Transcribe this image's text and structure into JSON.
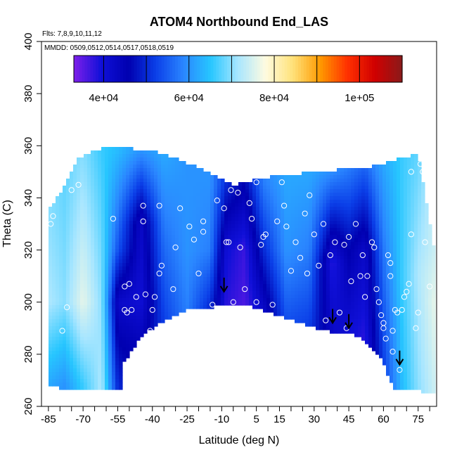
{
  "chart_data": {
    "type": "heatmap",
    "title": "ATOM4 Northbound End_LAS",
    "annotations": {
      "flights": "Flts: 7,8,9,10,11,12",
      "dates": "MMDD: 0509,0512,0514,0517,0518,0519"
    },
    "xlabel": "Latitude (deg N)",
    "ylabel": "Theta (C)",
    "xlim": [
      -88,
      83
    ],
    "ylim": [
      260,
      400
    ],
    "xticks": [
      -85,
      -70,
      -55,
      -40,
      -25,
      -10,
      5,
      15,
      30,
      45,
      60,
      75
    ],
    "xtick_labels": [
      "-85",
      "-70",
      "-55",
      "-40",
      "-25",
      "-10",
      "5",
      "15",
      "30",
      "45",
      "60",
      "75"
    ],
    "yticks": [
      260,
      280,
      300,
      320,
      340,
      360,
      380,
      400
    ],
    "ytick_labels": [
      "260",
      "280",
      "300",
      "320",
      "340",
      "360",
      "380",
      "400"
    ],
    "colorbar": {
      "range": [
        33000,
        110000
      ],
      "ticks": [
        40000,
        60000,
        80000,
        100000
      ],
      "tick_labels": [
        "4e+04",
        "6e+04",
        "8e+04",
        "1e+05"
      ],
      "colors": [
        "#7e1fea",
        "#1010d8",
        "#0000b0",
        "#0b3fe8",
        "#2a86ff",
        "#27c6ff",
        "#a8e6ff",
        "#fffbe0",
        "#ffe27a",
        "#ff9a00",
        "#ff3000",
        "#d00000",
        "#8a1a1a"
      ]
    },
    "region": {
      "top_boundary": [
        [
          -85,
          335
        ],
        [
          -78,
          345
        ],
        [
          -72,
          355
        ],
        [
          -60,
          360
        ],
        [
          -40,
          358
        ],
        [
          -20,
          352
        ],
        [
          -5,
          345
        ],
        [
          10,
          348
        ],
        [
          30,
          350
        ],
        [
          55,
          352
        ],
        [
          75,
          357
        ],
        [
          82,
          320
        ]
      ],
      "bottom_boundary": [
        [
          82,
          265
        ],
        [
          75,
          266
        ],
        [
          65,
          266
        ],
        [
          58,
          280
        ],
        [
          50,
          287
        ],
        [
          35,
          289
        ],
        [
          20,
          293
        ],
        [
          5,
          298
        ],
        [
          -5,
          299
        ],
        [
          -15,
          298
        ],
        [
          -25,
          297
        ],
        [
          -35,
          293
        ],
        [
          -45,
          287
        ],
        [
          -50,
          280
        ],
        [
          -53,
          276
        ],
        [
          -53,
          266
        ],
        [
          -75,
          266
        ],
        [
          -85,
          268
        ]
      ]
    },
    "field_columns": [
      {
        "lat": -85,
        "values": [
          [
            268,
            62000
          ],
          [
            300,
            72000
          ],
          [
            335,
            70000
          ]
        ]
      },
      {
        "lat": -78,
        "values": [
          [
            268,
            60000
          ],
          [
            300,
            70000
          ],
          [
            345,
            68000
          ]
        ]
      },
      {
        "lat": -70,
        "values": [
          [
            268,
            66000
          ],
          [
            300,
            76000
          ],
          [
            355,
            70000
          ]
        ]
      },
      {
        "lat": -62,
        "values": [
          [
            268,
            72000
          ],
          [
            300,
            70000
          ],
          [
            358,
            66000
          ]
        ]
      },
      {
        "lat": -55,
        "values": [
          [
            268,
            50000
          ],
          [
            300,
            42000
          ],
          [
            320,
            54000
          ],
          [
            358,
            64000
          ]
        ]
      },
      {
        "lat": -45,
        "values": [
          [
            285,
            44000
          ],
          [
            300,
            40000
          ],
          [
            330,
            42000
          ],
          [
            358,
            60000
          ]
        ]
      },
      {
        "lat": -35,
        "values": [
          [
            292,
            52000
          ],
          [
            320,
            56000
          ],
          [
            356,
            62000
          ]
        ]
      },
      {
        "lat": -25,
        "values": [
          [
            296,
            58000
          ],
          [
            320,
            60000
          ],
          [
            352,
            60000
          ]
        ]
      },
      {
        "lat": -15,
        "values": [
          [
            298,
            50000
          ],
          [
            320,
            58000
          ],
          [
            348,
            60000
          ]
        ]
      },
      {
        "lat": -8,
        "values": [
          [
            299,
            38000
          ],
          [
            320,
            40000
          ],
          [
            345,
            50000
          ]
        ]
      },
      {
        "lat": 0,
        "values": [
          [
            299,
            36000
          ],
          [
            320,
            37000
          ],
          [
            345,
            46000
          ]
        ]
      },
      {
        "lat": 8,
        "values": [
          [
            297,
            42000
          ],
          [
            320,
            50000
          ],
          [
            346,
            58000
          ]
        ]
      },
      {
        "lat": 18,
        "values": [
          [
            294,
            54000
          ],
          [
            320,
            60000
          ],
          [
            348,
            62000
          ]
        ]
      },
      {
        "lat": 28,
        "values": [
          [
            291,
            52000
          ],
          [
            320,
            58000
          ],
          [
            350,
            62000
          ]
        ]
      },
      {
        "lat": 38,
        "values": [
          [
            289,
            42000
          ],
          [
            315,
            38000
          ],
          [
            351,
            60000
          ]
        ]
      },
      {
        "lat": 45,
        "values": [
          [
            288,
            40000
          ],
          [
            320,
            46000
          ],
          [
            352,
            58000
          ]
        ]
      },
      {
        "lat": 52,
        "values": [
          [
            286,
            38000
          ],
          [
            320,
            42000
          ],
          [
            353,
            56000
          ]
        ]
      },
      {
        "lat": 60,
        "values": [
          [
            275,
            52000
          ],
          [
            310,
            56000
          ],
          [
            354,
            62000
          ]
        ]
      },
      {
        "lat": 68,
        "values": [
          [
            266,
            64000
          ],
          [
            310,
            66000
          ],
          [
            356,
            66000
          ]
        ]
      },
      {
        "lat": 75,
        "values": [
          [
            266,
            70000
          ],
          [
            310,
            72000
          ],
          [
            357,
            68000
          ]
        ]
      },
      {
        "lat": 82,
        "values": [
          [
            266,
            74000
          ],
          [
            300,
            76000
          ],
          [
            320,
            74000
          ]
        ]
      }
    ],
    "points": [
      [
        -87,
        280
      ],
      [
        -87,
        294
      ],
      [
        -84,
        330
      ],
      [
        -83,
        333
      ],
      [
        -79,
        289
      ],
      [
        -77,
        298
      ],
      [
        -75,
        343
      ],
      [
        -72,
        345
      ],
      [
        -57,
        332
      ],
      [
        -52,
        306
      ],
      [
        -52,
        297
      ],
      [
        -51,
        296
      ],
      [
        -50,
        307
      ],
      [
        -49,
        297
      ],
      [
        -47,
        302
      ],
      [
        -44,
        331
      ],
      [
        -43,
        303
      ],
      [
        -44,
        337
      ],
      [
        -41,
        289
      ],
      [
        -40,
        297
      ],
      [
        -39,
        302
      ],
      [
        -37,
        311
      ],
      [
        -36,
        314
      ],
      [
        -37,
        337
      ],
      [
        -31,
        305
      ],
      [
        -30,
        321
      ],
      [
        -28,
        336
      ],
      [
        -24,
        329
      ],
      [
        -22,
        324
      ],
      [
        -20,
        311
      ],
      [
        -18,
        331
      ],
      [
        -18,
        327
      ],
      [
        -16,
        296
      ],
      [
        -14,
        299
      ],
      [
        -12,
        339
      ],
      [
        -9,
        336
      ],
      [
        -8,
        323
      ],
      [
        -7,
        323
      ],
      [
        -6,
        343
      ],
      [
        -5,
        300
      ],
      [
        -3,
        342
      ],
      [
        -2,
        321
      ],
      [
        0,
        305
      ],
      [
        2,
        338
      ],
      [
        3,
        332
      ],
      [
        5,
        300
      ],
      [
        5,
        346
      ],
      [
        7,
        322
      ],
      [
        8,
        325
      ],
      [
        9,
        326
      ],
      [
        12,
        299
      ],
      [
        14,
        331
      ],
      [
        16,
        346
      ],
      [
        17,
        337
      ],
      [
        18,
        329
      ],
      [
        20,
        312
      ],
      [
        22,
        323
      ],
      [
        24,
        317
      ],
      [
        26,
        334
      ],
      [
        27,
        311
      ],
      [
        28,
        341
      ],
      [
        30,
        326
      ],
      [
        32,
        314
      ],
      [
        34,
        330
      ],
      [
        35,
        293
      ],
      [
        37,
        318
      ],
      [
        39,
        323
      ],
      [
        41,
        296
      ],
      [
        43,
        322
      ],
      [
        44,
        290
      ],
      [
        45,
        325
      ],
      [
        46,
        308
      ],
      [
        48,
        330
      ],
      [
        50,
        310
      ],
      [
        51,
        318
      ],
      [
        52,
        302
      ],
      [
        53,
        310
      ],
      [
        55,
        323
      ],
      [
        56,
        321
      ],
      [
        57,
        305
      ],
      [
        58,
        300
      ],
      [
        59,
        295
      ],
      [
        60,
        292
      ],
      [
        60,
        290
      ],
      [
        61,
        286
      ],
      [
        62,
        318
      ],
      [
        63,
        315
      ],
      [
        63,
        310
      ],
      [
        64,
        289
      ],
      [
        64,
        281
      ],
      [
        65,
        297
      ],
      [
        66,
        296
      ],
      [
        67,
        274
      ],
      [
        68,
        297
      ],
      [
        69,
        302
      ],
      [
        70,
        304
      ],
      [
        71,
        307
      ],
      [
        72,
        350
      ],
      [
        72,
        326
      ],
      [
        74,
        290
      ],
      [
        75,
        296
      ],
      [
        76,
        353
      ],
      [
        77,
        350
      ],
      [
        78,
        323
      ],
      [
        80,
        306
      ],
      [
        82,
        355
      ]
    ],
    "arrows": [
      {
        "lat": -9,
        "theta": 304
      },
      {
        "lat": 38,
        "theta": 292
      },
      {
        "lat": 45,
        "theta": 290
      },
      {
        "lat": 67,
        "theta": 276
      }
    ]
  }
}
